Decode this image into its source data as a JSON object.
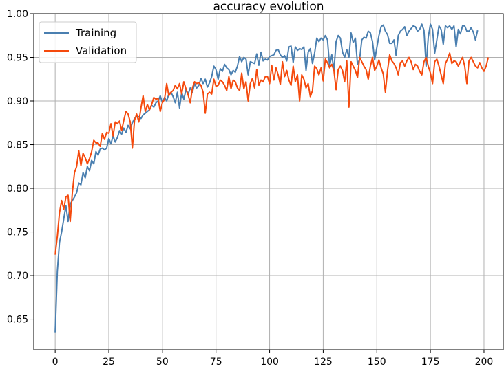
{
  "chart_data": {
    "type": "line",
    "title": "accuracy evolution",
    "xlabel": "",
    "ylabel": "",
    "xlim": [
      -10,
      209
    ],
    "ylim": [
      0.615,
      1.0
    ],
    "xticks": [
      0,
      25,
      50,
      75,
      100,
      125,
      150,
      175,
      200
    ],
    "yticks": [
      0.65,
      0.7,
      0.75,
      0.8,
      0.85,
      0.9,
      0.95,
      1.0
    ],
    "ytick_labels": [
      "0.65",
      "0.70",
      "0.75",
      "0.80",
      "0.85",
      "0.90",
      "0.95",
      "1.00"
    ],
    "grid": true,
    "legend_position": "top-left",
    "x_start": 0,
    "series": [
      {
        "name": "Training",
        "color": "#4a7fb0",
        "values": [
          0.635,
          0.705,
          0.738,
          0.75,
          0.765,
          0.78,
          0.762,
          0.782,
          0.786,
          0.79,
          0.795,
          0.806,
          0.804,
          0.818,
          0.812,
          0.825,
          0.82,
          0.832,
          0.828,
          0.842,
          0.838,
          0.845,
          0.846,
          0.844,
          0.846,
          0.857,
          0.851,
          0.86,
          0.853,
          0.858,
          0.866,
          0.862,
          0.869,
          0.864,
          0.872,
          0.868,
          0.875,
          0.88,
          0.882,
          0.882,
          0.88,
          0.884,
          0.886,
          0.888,
          0.89,
          0.895,
          0.893,
          0.898,
          0.9,
          0.906,
          0.898,
          0.904,
          0.9,
          0.908,
          0.91,
          0.905,
          0.898,
          0.91,
          0.892,
          0.91,
          0.902,
          0.913,
          0.908,
          0.915,
          0.91,
          0.92,
          0.915,
          0.918,
          0.926,
          0.92,
          0.925,
          0.916,
          0.921,
          0.928,
          0.94,
          0.936,
          0.925,
          0.937,
          0.934,
          0.942,
          0.938,
          0.936,
          0.93,
          0.935,
          0.933,
          0.94,
          0.951,
          0.945,
          0.95,
          0.948,
          0.93,
          0.945,
          0.944,
          0.943,
          0.954,
          0.941,
          0.956,
          0.946,
          0.948,
          0.947,
          0.951,
          0.952,
          0.953,
          0.958,
          0.959,
          0.953,
          0.95,
          0.952,
          0.946,
          0.962,
          0.963,
          0.944,
          0.962,
          0.958,
          0.96,
          0.959,
          0.962,
          0.935,
          0.956,
          0.96,
          0.943,
          0.955,
          0.972,
          0.968,
          0.972,
          0.97,
          0.975,
          0.97,
          0.94,
          0.953,
          0.935,
          0.968,
          0.975,
          0.972,
          0.956,
          0.95,
          0.959,
          0.95,
          0.978,
          0.967,
          0.972,
          0.942,
          0.948,
          0.97,
          0.973,
          0.972,
          0.98,
          0.978,
          0.968,
          0.947,
          0.961,
          0.975,
          0.985,
          0.987,
          0.98,
          0.976,
          0.966,
          0.966,
          0.97,
          0.952,
          0.975,
          0.98,
          0.982,
          0.985,
          0.975,
          0.98,
          0.983,
          0.986,
          0.985,
          0.98,
          0.982,
          0.988,
          0.981,
          0.94,
          0.973,
          0.988,
          0.982,
          0.955,
          0.97,
          0.986,
          0.982,
          0.965,
          0.986,
          0.984,
          0.986,
          0.982,
          0.986,
          0.962,
          0.982,
          0.977,
          0.986,
          0.986,
          0.98,
          0.98,
          0.984,
          0.979,
          0.97,
          0.981
        ]
      },
      {
        "name": "Validation",
        "color": "#f54a0d",
        "values": [
          0.724,
          0.745,
          0.772,
          0.786,
          0.776,
          0.79,
          0.792,
          0.762,
          0.795,
          0.818,
          0.825,
          0.843,
          0.826,
          0.84,
          0.835,
          0.828,
          0.834,
          0.842,
          0.855,
          0.852,
          0.852,
          0.848,
          0.863,
          0.856,
          0.864,
          0.863,
          0.874,
          0.86,
          0.876,
          0.874,
          0.877,
          0.866,
          0.878,
          0.888,
          0.885,
          0.876,
          0.846,
          0.878,
          0.885,
          0.876,
          0.892,
          0.906,
          0.888,
          0.896,
          0.89,
          0.896,
          0.904,
          0.902,
          0.903,
          0.888,
          0.898,
          0.902,
          0.92,
          0.906,
          0.91,
          0.912,
          0.918,
          0.914,
          0.92,
          0.908,
          0.922,
          0.914,
          0.907,
          0.898,
          0.915,
          0.922,
          0.92,
          0.921,
          0.918,
          0.91,
          0.886,
          0.908,
          0.91,
          0.908,
          0.925,
          0.917,
          0.918,
          0.924,
          0.922,
          0.918,
          0.912,
          0.928,
          0.914,
          0.924,
          0.922,
          0.915,
          0.912,
          0.932,
          0.914,
          0.922,
          0.9,
          0.92,
          0.926,
          0.915,
          0.936,
          0.918,
          0.924,
          0.922,
          0.928,
          0.928,
          0.92,
          0.941,
          0.924,
          0.938,
          0.93,
          0.919,
          0.945,
          0.928,
          0.935,
          0.924,
          0.918,
          0.94,
          0.922,
          0.93,
          0.9,
          0.93,
          0.925,
          0.915,
          0.92,
          0.905,
          0.912,
          0.94,
          0.937,
          0.93,
          0.938,
          0.923,
          0.948,
          0.944,
          0.938,
          0.942,
          0.935,
          0.913,
          0.936,
          0.94,
          0.935,
          0.922,
          0.946,
          0.893,
          0.945,
          0.94,
          0.935,
          0.927,
          0.95,
          0.945,
          0.94,
          0.936,
          0.925,
          0.94,
          0.95,
          0.935,
          0.94,
          0.947,
          0.938,
          0.931,
          0.91,
          0.935,
          0.953,
          0.946,
          0.943,
          0.938,
          0.93,
          0.944,
          0.946,
          0.94,
          0.946,
          0.95,
          0.945,
          0.936,
          0.942,
          0.94,
          0.934,
          0.93,
          0.945,
          0.95,
          0.94,
          0.932,
          0.92,
          0.945,
          0.948,
          0.94,
          0.93,
          0.92,
          0.943,
          0.948,
          0.955,
          0.943,
          0.946,
          0.945,
          0.94,
          0.945,
          0.95,
          0.94,
          0.92,
          0.946,
          0.95,
          0.945,
          0.94,
          0.938,
          0.944,
          0.938,
          0.934,
          0.94,
          0.95
        ]
      }
    ]
  }
}
